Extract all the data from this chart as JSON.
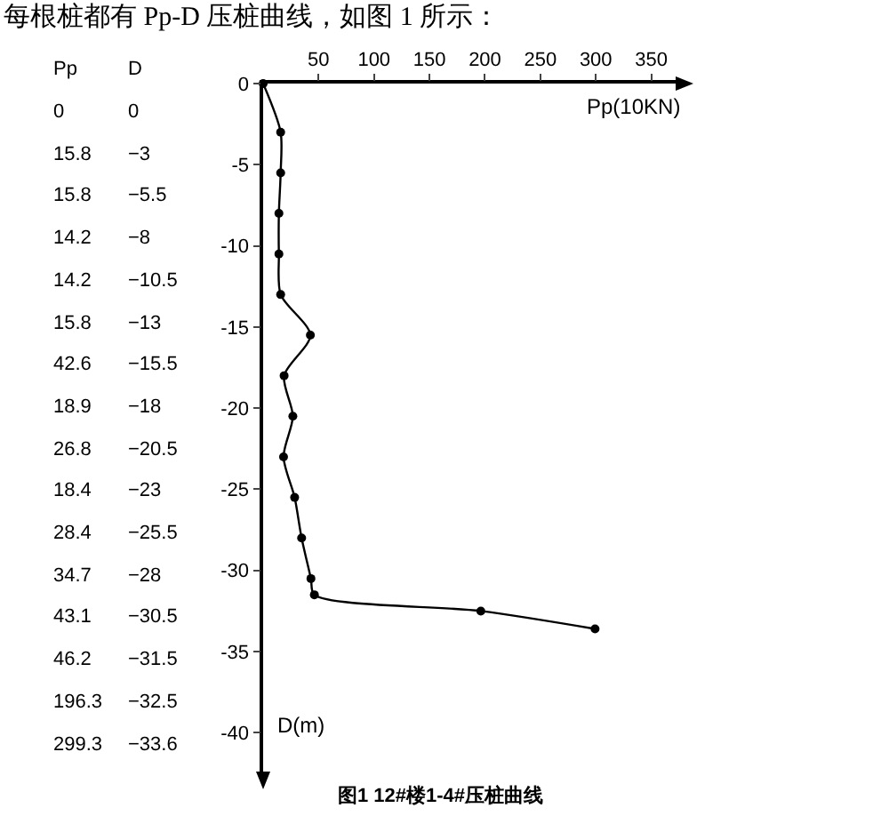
{
  "chart_data": {
    "type": "line",
    "xlabel": "Pp(10KN)",
    "ylabel": "D(m)",
    "annotations": [
      "每根桩都有 Pp-D 压桩曲线，如图 1 所示：",
      "图1  12#楼1-4#压桩曲线",
      "Pp",
      "D",
      "0",
      "0",
      "15.8",
      "−3",
      "15.8",
      "−5.5",
      "14.2",
      "−8",
      "14.2",
      "−10.5",
      "15.8",
      "−13",
      "42.6",
      "−15.5",
      "18.9",
      "−18",
      "26.8",
      "−20.5",
      "18.4",
      "−23",
      "28.4",
      "−25.5",
      "34.7",
      "−28",
      "43.1",
      "−30.5",
      "46.2",
      "−31.5",
      "196.3",
      "−32.5",
      "299.3",
      "−33.6"
    ],
    "x": [
      0,
      15.8,
      15.8,
      14.2,
      14.2,
      15.8,
      42.6,
      18.9,
      26.8,
      18.4,
      28.4,
      34.7,
      43.1,
      46.2,
      196.3,
      299.3
    ],
    "values": [
      0,
      -3,
      -5.5,
      -8,
      -10.5,
      -13,
      -15.5,
      -18,
      -20.5,
      -23,
      -25.5,
      -28,
      -30.5,
      -31.5,
      -32.5,
      -33.6
    ],
    "color": "#000000",
    "marker": "circle",
    "line_style": "solid",
    "grid": false,
    "xlim": [
      0,
      380
    ],
    "xticks": [
      50,
      100,
      150,
      200,
      250,
      300,
      350
    ],
    "ylim": [
      -42.5,
      0
    ],
    "yticks": [
      0,
      -5,
      -10,
      -15,
      -20,
      -25,
      -30,
      -35,
      -40
    ]
  }
}
